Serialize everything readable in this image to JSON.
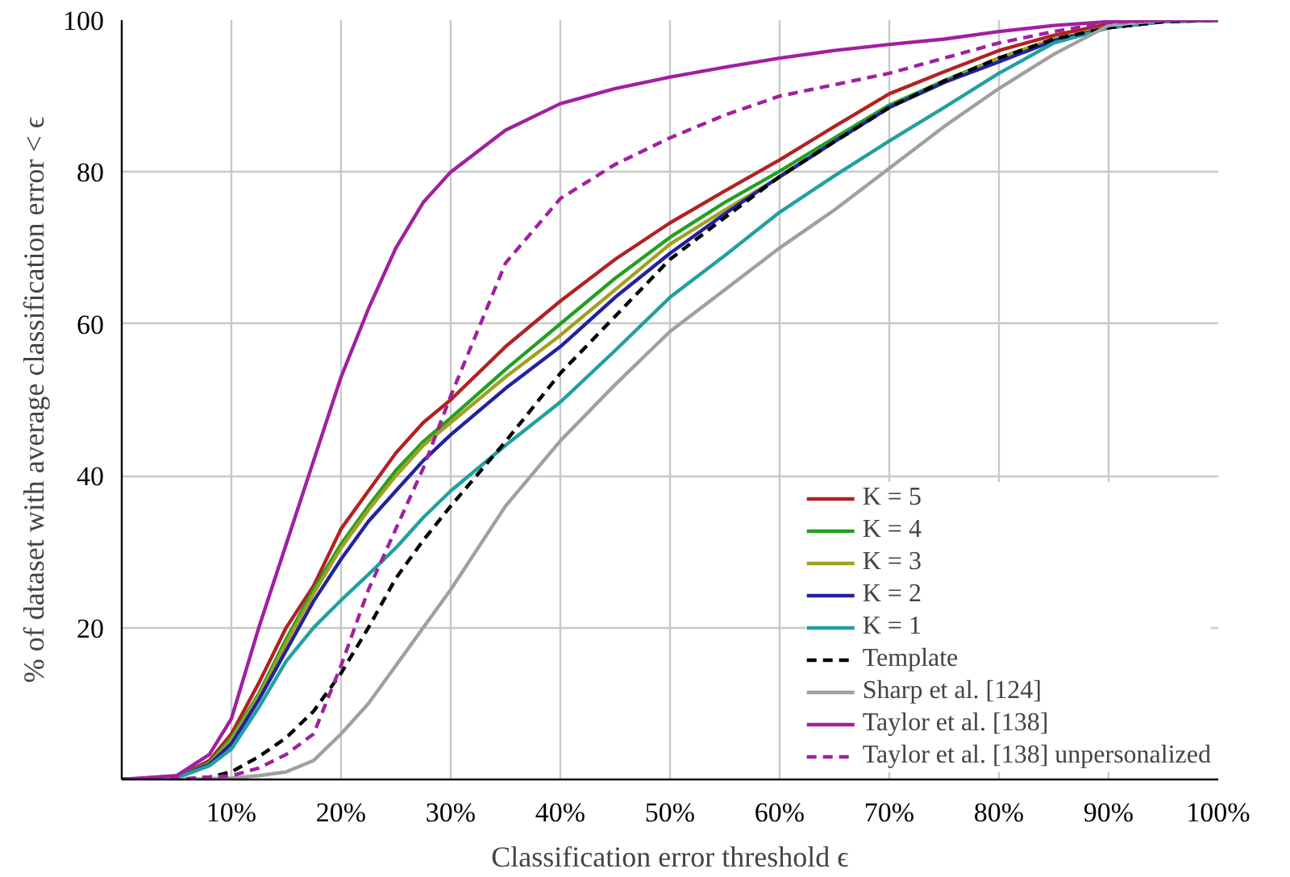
{
  "chart_data": {
    "type": "line",
    "xlabel": "Classification error threshold ϵ",
    "ylabel": "% of dataset with average classification error < ϵ",
    "x": [
      0,
      5,
      8,
      10,
      12.5,
      15,
      17.5,
      20,
      22.5,
      25,
      27.5,
      30,
      35,
      40,
      45,
      50,
      55,
      60,
      65,
      70,
      75,
      80,
      85,
      90,
      95,
      100
    ],
    "xlim": [
      0,
      100
    ],
    "ylim": [
      0,
      100
    ],
    "xticks": [
      {
        "value": 10,
        "label": "10%"
      },
      {
        "value": 20,
        "label": "20%"
      },
      {
        "value": 30,
        "label": "30%"
      },
      {
        "value": 40,
        "label": "40%"
      },
      {
        "value": 50,
        "label": "50%"
      },
      {
        "value": 60,
        "label": "60%"
      },
      {
        "value": 70,
        "label": "70%"
      },
      {
        "value": 80,
        "label": "80%"
      },
      {
        "value": 90,
        "label": "90%"
      },
      {
        "value": 100,
        "label": "100%"
      }
    ],
    "yticks": [
      20,
      40,
      60,
      80,
      100
    ],
    "grid": true,
    "legend": "bottom right",
    "series": [
      {
        "name": "K = 5",
        "color": "#b22222",
        "values": [
          0,
          0.3,
          2.5,
          6,
          12.7,
          20,
          25.5,
          33,
          38,
          43,
          47,
          50,
          57,
          63,
          68.5,
          73.3,
          77.5,
          81.6,
          86,
          90.3,
          93.2,
          96,
          98,
          99.5,
          100,
          100
        ]
      },
      {
        "name": "K = 4",
        "color": "#22a022",
        "values": [
          0,
          0.2,
          2.2,
          5.5,
          11.3,
          18.5,
          25,
          31,
          36,
          40.7,
          44.5,
          47.6,
          54,
          60,
          66,
          71.4,
          76,
          80.1,
          84.5,
          88.8,
          92,
          95,
          97.5,
          null,
          null,
          null
        ]
      },
      {
        "name": "K = 3",
        "color": "#a0a020",
        "values": [
          0,
          0.2,
          2.1,
          5.2,
          11,
          18,
          24.5,
          30.5,
          35.5,
          40,
          44,
          47,
          53,
          58.5,
          64.5,
          70.5,
          75,
          79.3,
          84,
          88.5,
          91.8,
          95,
          97.5,
          99,
          99.8,
          100
        ]
      },
      {
        "name": "K = 2",
        "color": "#2222a0",
        "values": [
          0,
          0.2,
          2,
          4.7,
          10.5,
          17,
          23.5,
          29,
          34,
          38,
          42,
          45.4,
          51.5,
          57,
          63.5,
          69.3,
          74.5,
          79.4,
          84,
          88.5,
          91.8,
          94.5,
          97.3,
          99,
          99.8,
          100
        ]
      },
      {
        "name": "K = 1",
        "color": "#22a0a0",
        "values": [
          0,
          0.2,
          1.8,
          4,
          9.5,
          15.6,
          20,
          23.6,
          27,
          30.5,
          34.5,
          38,
          44,
          49.7,
          56.5,
          63.5,
          69,
          74.7,
          79.5,
          84.1,
          88.5,
          93,
          97,
          99,
          99.8,
          100
        ]
      },
      {
        "name": "Template",
        "color": "#000000",
        "line_style": "dashed",
        "values": [
          0,
          0,
          0.3,
          1,
          3,
          5.5,
          9,
          14,
          20,
          26.5,
          31.5,
          36,
          44.5,
          53.5,
          61,
          68.5,
          74,
          79.4,
          84,
          88.5,
          92,
          95,
          97.5,
          99,
          99.8,
          100
        ]
      },
      {
        "name": "Sharp et al. [124]",
        "color": "#a0a0a0",
        "values": [
          0,
          0,
          0.1,
          0.2,
          0.5,
          1,
          2.5,
          6,
          10,
          15,
          20,
          25,
          36,
          44.6,
          52,
          59,
          64.5,
          70,
          75,
          80.5,
          86,
          91,
          95.5,
          99.3,
          100,
          100
        ]
      },
      {
        "name": "Taylor et al. [138]",
        "color": "#a020a0",
        "values": [
          0,
          0.5,
          3.3,
          8,
          20,
          31,
          42,
          53,
          62,
          70,
          76,
          80,
          85.5,
          89,
          91,
          92.5,
          93.8,
          95,
          96,
          96.8,
          97.5,
          98.5,
          99.3,
          99.8,
          100,
          100
        ]
      },
      {
        "name": "Taylor et al. [138] unpersonalized",
        "color": "#a020a0",
        "line_style": "dashed",
        "values": [
          0,
          0,
          0.3,
          0.5,
          1.5,
          3.3,
          6,
          15,
          25,
          33,
          41,
          50.5,
          68,
          76.5,
          81,
          84.5,
          87.5,
          90,
          91.5,
          93,
          95,
          97,
          98.5,
          99.7,
          100,
          100
        ]
      }
    ]
  }
}
